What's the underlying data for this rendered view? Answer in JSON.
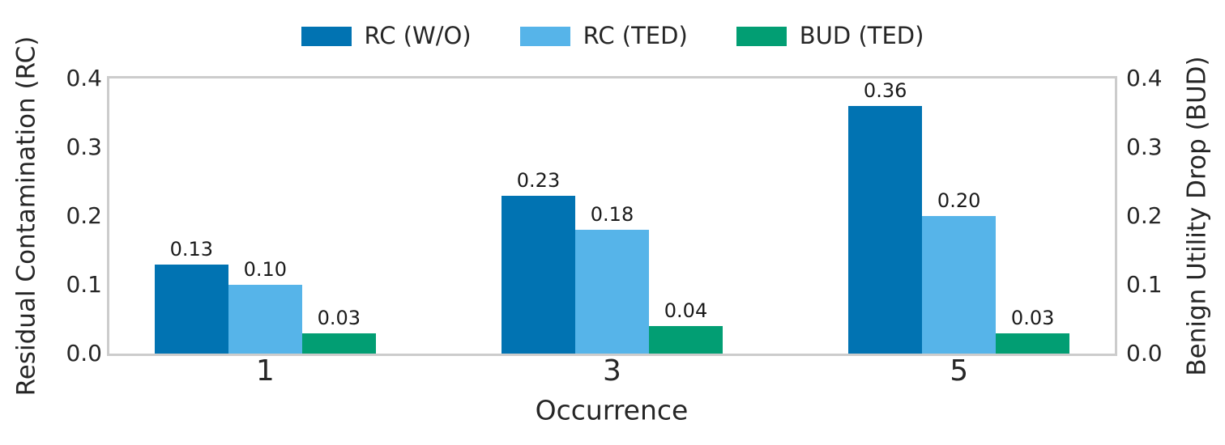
{
  "chart_data": {
    "type": "bar",
    "title": "",
    "xlabel": "Occurrence",
    "ylabel_left": "Residual Contamination (RC)",
    "ylabel_right": "Benign Utility Drop (BUD)",
    "categories": [
      "1",
      "3",
      "5"
    ],
    "series": [
      {
        "name": "RC (W/O)",
        "color": "#0173b2",
        "values": [
          0.13,
          0.23,
          0.36
        ],
        "value_labels": [
          "0.13",
          "0.23",
          "0.36"
        ]
      },
      {
        "name": "RC (TED)",
        "color": "#56b4e9",
        "values": [
          0.1,
          0.18,
          0.2
        ],
        "value_labels": [
          "0.10",
          "0.18",
          "0.20"
        ]
      },
      {
        "name": "BUD (TED)",
        "color": "#029e73",
        "values": [
          0.03,
          0.04,
          0.03
        ],
        "value_labels": [
          "0.03",
          "0.04",
          "0.03"
        ]
      }
    ],
    "ylim": [
      0.0,
      0.4
    ],
    "yticks_left": [
      "0.0",
      "0.1",
      "0.2",
      "0.3",
      "0.4"
    ],
    "yticks_right": [
      "0.0",
      "0.1",
      "0.2",
      "0.3",
      "0.4"
    ],
    "grid": false,
    "legend_position": "top-center",
    "bar_value_labels": true,
    "colors": {
      "frame": "#cccccc",
      "text": "#262626",
      "background": "#ffffff"
    }
  }
}
